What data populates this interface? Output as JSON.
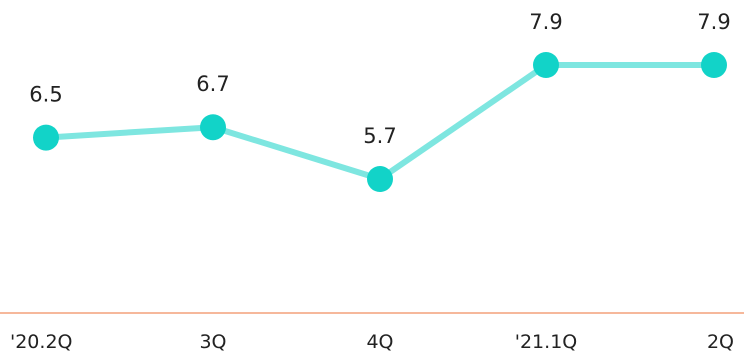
{
  "chart_data": {
    "type": "line",
    "categories": [
      "'20.2Q",
      "3Q",
      "4Q",
      "'21.1Q",
      "2Q"
    ],
    "series": [
      {
        "values": [
          6.5,
          6.7,
          5.7,
          7.9,
          7.9
        ]
      }
    ],
    "data_labels": [
      "6.5",
      "6.7",
      "5.7",
      "7.9",
      "7.9"
    ],
    "grid": false,
    "legend": "none",
    "colors": {
      "line": "#7ee6e0",
      "marker": "#12d3c8",
      "axis": "#f4a07a",
      "text": "#222222"
    }
  }
}
